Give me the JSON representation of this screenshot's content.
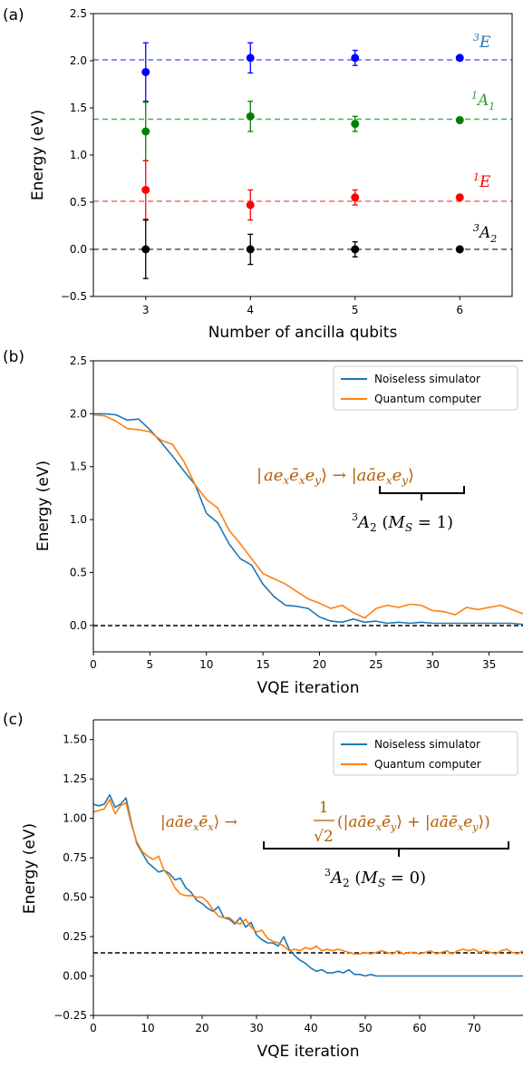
{
  "colors": {
    "blue": "#1f77b4",
    "orange": "#ff7f0e",
    "pt_blue": "#0000ff",
    "pt_green": "#008000",
    "pt_red": "#ff0000",
    "pt_black": "#000000",
    "annot_brown": "#b35c00"
  },
  "chart_data": [
    {
      "panel_label": "(a)",
      "type": "scatter",
      "xlabel": "Number of ancilla qubits",
      "ylabel": "Energy (eV)",
      "xlim": [
        2.5,
        6.5
      ],
      "ylim": [
        -0.5,
        2.5
      ],
      "xticks": [
        "3",
        "4",
        "5",
        "6"
      ],
      "yticks": [
        "−0.5",
        "0.0",
        "0.5",
        "1.0",
        "1.5",
        "2.0",
        "2.5"
      ],
      "grid": false,
      "series": [
        {
          "name": "³E",
          "color": "#0000ff",
          "reference": 2.01,
          "x": [
            3,
            4,
            5,
            6
          ],
          "y": [
            1.88,
            2.03,
            2.03,
            2.03
          ],
          "err": [
            0.31,
            0.16,
            0.08,
            0.0
          ]
        },
        {
          "name": "¹A₁",
          "color": "#008000",
          "reference": 1.38,
          "x": [
            3,
            4,
            5,
            6
          ],
          "y": [
            1.25,
            1.41,
            1.33,
            1.37
          ],
          "err": [
            0.31,
            0.16,
            0.08,
            0.0
          ]
        },
        {
          "name": "¹E",
          "color": "#ff0000",
          "reference": 0.51,
          "x": [
            3,
            4,
            5,
            6
          ],
          "y": [
            0.63,
            0.47,
            0.55,
            0.55
          ],
          "err": [
            0.31,
            0.16,
            0.08,
            0.0
          ]
        },
        {
          "name": "³A₂",
          "color": "#000000",
          "reference": 0.0,
          "x": [
            3,
            4,
            5,
            6
          ],
          "y": [
            0.0,
            0.0,
            0.0,
            0.0
          ],
          "err": [
            0.31,
            0.16,
            0.08,
            0.0
          ]
        }
      ]
    },
    {
      "panel_label": "(b)",
      "type": "line",
      "xlabel": "VQE iteration",
      "ylabel": "Energy (eV)",
      "xlim": [
        0,
        38
      ],
      "ylim": [
        -0.25,
        2.5
      ],
      "xticks": [
        "0",
        "5",
        "10",
        "15",
        "20",
        "25",
        "30",
        "35"
      ],
      "yticks": [
        "0.0",
        "0.5",
        "1.0",
        "1.5",
        "2.0",
        "2.5"
      ],
      "legend_position": "top-right",
      "reference": 0.0,
      "annotation": "|ae_x ē_x e_y⟩ → |aā e_x e_y⟩",
      "annotation_label": "³A₂ (M_S = 1)",
      "series": [
        {
          "name": "Noiseless simulator",
          "color": "#1f77b4",
          "x": [
            0,
            1,
            2,
            3,
            4,
            5,
            6,
            7,
            8,
            9,
            10,
            11,
            12,
            13,
            14,
            15,
            16,
            17,
            18,
            19,
            20,
            21,
            22,
            23,
            24,
            25,
            26,
            27,
            28,
            29,
            30,
            31,
            32,
            33,
            34,
            35,
            36,
            37,
            38
          ],
          "y": [
            2.0,
            2.0,
            1.99,
            1.94,
            1.95,
            1.85,
            1.73,
            1.6,
            1.46,
            1.33,
            1.06,
            0.97,
            0.77,
            0.63,
            0.57,
            0.39,
            0.27,
            0.19,
            0.18,
            0.16,
            0.08,
            0.04,
            0.03,
            0.06,
            0.03,
            0.04,
            0.02,
            0.03,
            0.02,
            0.03,
            0.02,
            0.02,
            0.02,
            0.02,
            0.02,
            0.02,
            0.02,
            0.02,
            0.01
          ]
        },
        {
          "name": "Quantum computer",
          "color": "#ff7f0e",
          "x": [
            0,
            1,
            2,
            3,
            4,
            5,
            6,
            7,
            8,
            9,
            10,
            11,
            12,
            13,
            14,
            15,
            16,
            17,
            18,
            19,
            20,
            21,
            22,
            23,
            24,
            25,
            26,
            27,
            28,
            29,
            30,
            31,
            32,
            33,
            34,
            35,
            36,
            37,
            38
          ],
          "y": [
            1.99,
            1.98,
            1.93,
            1.86,
            1.85,
            1.83,
            1.75,
            1.71,
            1.55,
            1.33,
            1.19,
            1.11,
            0.9,
            0.77,
            0.63,
            0.49,
            0.44,
            0.39,
            0.32,
            0.25,
            0.21,
            0.16,
            0.19,
            0.12,
            0.07,
            0.16,
            0.19,
            0.17,
            0.2,
            0.19,
            0.14,
            0.13,
            0.1,
            0.17,
            0.15,
            0.17,
            0.19,
            0.15,
            0.11
          ]
        }
      ]
    },
    {
      "panel_label": "(c)",
      "type": "line",
      "xlabel": "VQE iteration",
      "ylabel": "Energy (eV)",
      "xlim": [
        0,
        79
      ],
      "ylim": [
        -0.25,
        1.625
      ],
      "xticks": [
        "0",
        "10",
        "20",
        "30",
        "40",
        "50",
        "60",
        "70"
      ],
      "yticks": [
        "−0.25",
        "0.00",
        "0.25",
        "0.50",
        "0.75",
        "1.00",
        "1.25",
        "1.50"
      ],
      "legend_position": "top-right",
      "reference": 0.0,
      "annotation": "|aā e_x ē_x⟩ → (1/√2)(|aā e_x ē_y⟩ + |aā ē_x e_y⟩)",
      "annotation_label": "³A₂ (M_S = 0)",
      "series": [
        {
          "name": "Noiseless simulator",
          "color": "#1f77b4",
          "x": [
            0,
            1,
            2,
            3,
            4,
            5,
            6,
            7,
            8,
            9,
            10,
            11,
            12,
            13,
            14,
            15,
            16,
            17,
            18,
            19,
            20,
            21,
            22,
            23,
            24,
            25,
            26,
            27,
            28,
            29,
            30,
            31,
            32,
            33,
            34,
            35,
            36,
            37,
            38,
            39,
            40,
            41,
            42,
            43,
            44,
            45,
            46,
            47,
            48,
            49,
            50,
            51,
            52,
            53,
            54,
            55,
            56,
            57,
            58,
            59,
            60,
            61,
            62,
            63,
            64,
            65,
            66,
            67,
            68,
            69,
            70,
            71,
            72,
            73,
            74,
            75,
            76,
            77,
            78,
            79
          ],
          "y": [
            1.09,
            1.08,
            1.09,
            1.15,
            1.07,
            1.09,
            1.13,
            0.97,
            0.84,
            0.78,
            0.72,
            0.69,
            0.66,
            0.67,
            0.65,
            0.61,
            0.62,
            0.56,
            0.53,
            0.48,
            0.46,
            0.43,
            0.41,
            0.44,
            0.37,
            0.36,
            0.33,
            0.37,
            0.31,
            0.34,
            0.26,
            0.23,
            0.21,
            0.21,
            0.19,
            0.25,
            0.17,
            0.13,
            0.1,
            0.08,
            0.05,
            0.03,
            0.04,
            0.02,
            0.02,
            0.03,
            0.02,
            0.04,
            0.01,
            0.01,
            0.0,
            0.01,
            0.0,
            0.0,
            0.0,
            0.0,
            0.0,
            0.0,
            0.0,
            0.0,
            0.0,
            0.0,
            0.0,
            0.0,
            0.0,
            0.0,
            0.0,
            0.0,
            0.0,
            0.0,
            0.0,
            0.0,
            0.0,
            0.0,
            0.0,
            0.0,
            0.0,
            0.0,
            0.0,
            0.0
          ]
        },
        {
          "name": "Quantum computer",
          "color": "#ff7f0e",
          "x": [
            0,
            1,
            2,
            3,
            4,
            5,
            6,
            7,
            8,
            9,
            10,
            11,
            12,
            13,
            14,
            15,
            16,
            17,
            18,
            19,
            20,
            21,
            22,
            23,
            24,
            25,
            26,
            27,
            28,
            29,
            30,
            31,
            32,
            33,
            34,
            35,
            36,
            37,
            38,
            39,
            40,
            41,
            42,
            43,
            44,
            45,
            46,
            47,
            48,
            49,
            50,
            51,
            52,
            53,
            54,
            55,
            56,
            57,
            58,
            59,
            60,
            61,
            62,
            63,
            64,
            65,
            66,
            67,
            68,
            69,
            70,
            71,
            72,
            73,
            74,
            75,
            76,
            77,
            78,
            79
          ],
          "y": [
            1.04,
            1.05,
            1.06,
            1.12,
            1.03,
            1.08,
            1.1,
            0.96,
            0.85,
            0.79,
            0.76,
            0.74,
            0.76,
            0.67,
            0.63,
            0.56,
            0.52,
            0.51,
            0.51,
            0.5,
            0.5,
            0.47,
            0.42,
            0.38,
            0.37,
            0.37,
            0.34,
            0.33,
            0.36,
            0.31,
            0.28,
            0.29,
            0.24,
            0.22,
            0.21,
            0.19,
            0.16,
            0.17,
            0.16,
            0.18,
            0.17,
            0.19,
            0.16,
            0.17,
            0.16,
            0.17,
            0.16,
            0.15,
            0.14,
            0.14,
            0.15,
            0.14,
            0.15,
            0.16,
            0.15,
            0.14,
            0.16,
            0.14,
            0.15,
            0.15,
            0.14,
            0.15,
            0.16,
            0.14,
            0.15,
            0.16,
            0.14,
            0.16,
            0.17,
            0.16,
            0.17,
            0.15,
            0.16,
            0.15,
            0.14,
            0.16,
            0.17,
            0.15,
            0.14,
            0.16
          ]
        }
      ]
    }
  ]
}
